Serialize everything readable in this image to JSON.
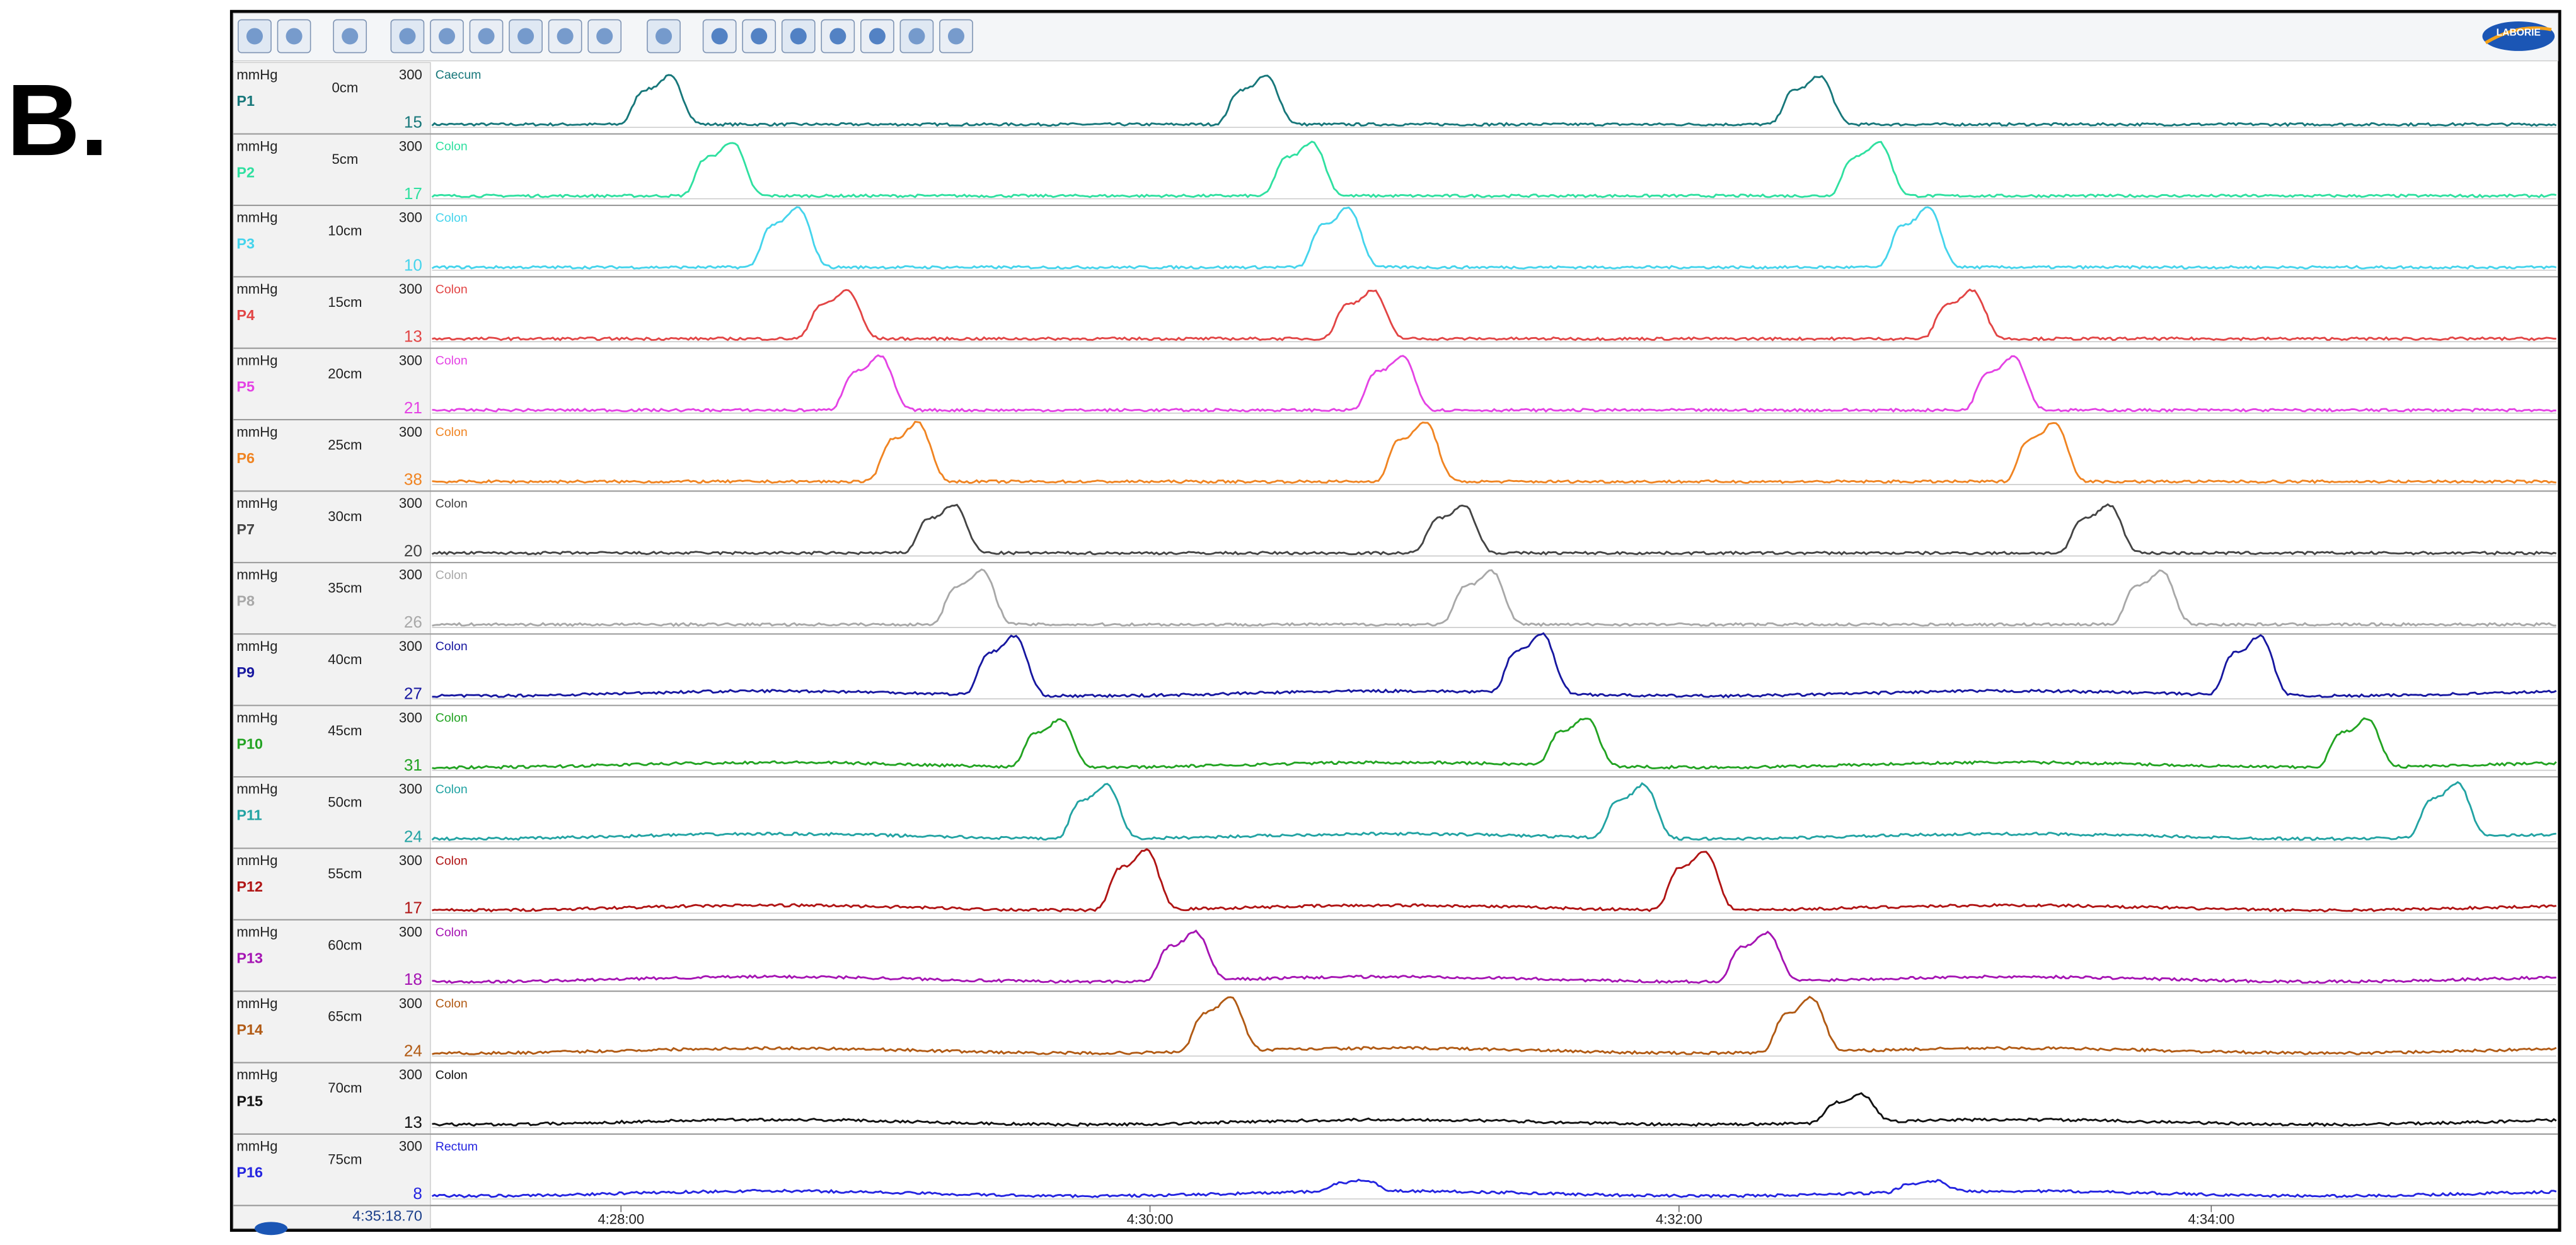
{
  "panel_label": "B.",
  "logo": "LABORIE",
  "channels": [
    {
      "unit": "mmHg",
      "name": "P1",
      "position": "0cm",
      "scale_max": 300,
      "value": 15,
      "region": "Caecum",
      "color": "#17777a"
    },
    {
      "unit": "mmHg",
      "name": "P2",
      "position": "5cm",
      "scale_max": 300,
      "value": 17,
      "region": "Colon",
      "color": "#2fe0a0"
    },
    {
      "unit": "mmHg",
      "name": "P3",
      "position": "10cm",
      "scale_max": 300,
      "value": 10,
      "region": "Colon",
      "color": "#45d4ec"
    },
    {
      "unit": "mmHg",
      "name": "P4",
      "position": "15cm",
      "scale_max": 300,
      "value": 13,
      "region": "Colon",
      "color": "#e24545"
    },
    {
      "unit": "mmHg",
      "name": "P5",
      "position": "20cm",
      "scale_max": 300,
      "value": 21,
      "region": "Colon",
      "color": "#e443e4"
    },
    {
      "unit": "mmHg",
      "name": "P6",
      "position": "25cm",
      "scale_max": 300,
      "value": 38,
      "region": "Colon",
      "color": "#f08422"
    },
    {
      "unit": "mmHg",
      "name": "P7",
      "position": "30cm",
      "scale_max": 300,
      "value": 20,
      "region": "Colon",
      "color": "#444444"
    },
    {
      "unit": "mmHg",
      "name": "P8",
      "position": "35cm",
      "scale_max": 300,
      "value": 26,
      "region": "Colon",
      "color": "#a8a8a8"
    },
    {
      "unit": "mmHg",
      "name": "P9",
      "position": "40cm",
      "scale_max": 300,
      "value": 27,
      "region": "Colon",
      "color": "#1717a0"
    },
    {
      "unit": "mmHg",
      "name": "P10",
      "position": "45cm",
      "scale_max": 300,
      "value": 31,
      "region": "Colon",
      "color": "#22a322"
    },
    {
      "unit": "mmHg",
      "name": "P11",
      "position": "50cm",
      "scale_max": 300,
      "value": 24,
      "region": "Colon",
      "color": "#22a3a3"
    },
    {
      "unit": "mmHg",
      "name": "P12",
      "position": "55cm",
      "scale_max": 300,
      "value": 17,
      "region": "Colon",
      "color": "#b01414"
    },
    {
      "unit": "mmHg",
      "name": "P13",
      "position": "60cm",
      "scale_max": 300,
      "value": 18,
      "region": "Colon",
      "color": "#a514b3"
    },
    {
      "unit": "mmHg",
      "name": "P14",
      "position": "65cm",
      "scale_max": 300,
      "value": 24,
      "region": "Colon",
      "color": "#b15a14"
    },
    {
      "unit": "mmHg",
      "name": "P15",
      "position": "70cm",
      "scale_max": 300,
      "value": 13,
      "region": "Colon",
      "color": "#111111"
    },
    {
      "unit": "mmHg",
      "name": "P16",
      "position": "75cm",
      "scale_max": 300,
      "value": 8,
      "region": "Rectum",
      "color": "#2424e0"
    }
  ],
  "time_axis": {
    "ticks": [
      "4:28:00",
      "4:30:00",
      "4:32:00",
      "4:34:00"
    ]
  },
  "timestamp": "4:35:18.70"
}
